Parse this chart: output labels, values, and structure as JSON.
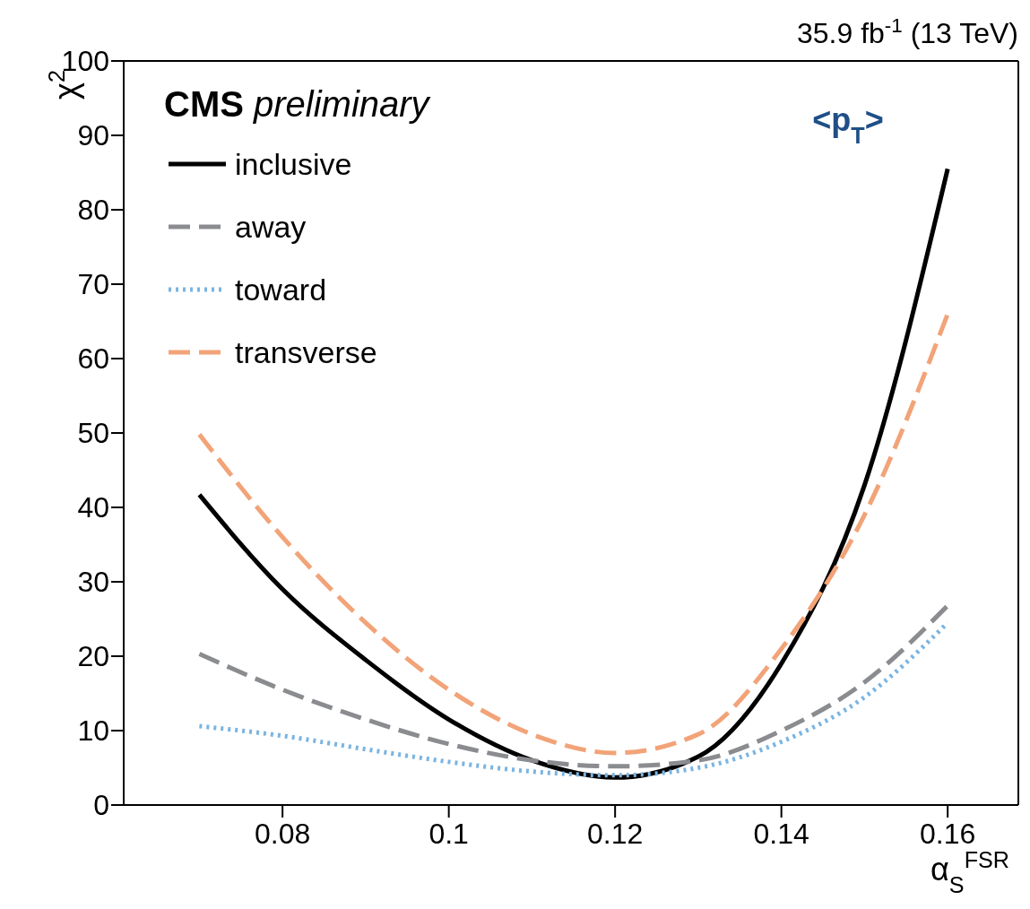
{
  "chart_data": {
    "type": "line",
    "xlabel": "α$_{S}$$^{FSR}$",
    "ylabel": "χ$^{2}$",
    "annotations": [
      "35.9 fb$^{-1}$ (13 TeV)",
      "CMS preliminary",
      "<p$_{T}$>"
    ],
    "x": [
      0.07,
      0.08,
      0.09,
      0.1,
      0.11,
      0.12,
      0.13,
      0.14,
      0.15,
      0.16
    ],
    "series": [
      {
        "name": "inclusive",
        "color": "#000000",
        "line_style": "solid",
        "values": [
          41.7,
          29,
          19.5,
          11.5,
          6,
          3.7,
          6.5,
          19,
          43,
          85.5
        ]
      },
      {
        "name": "away",
        "color": "#8a8c90",
        "line_style": "dashed",
        "values": [
          20.3,
          15.5,
          11.5,
          8.2,
          6,
          5.2,
          6,
          10,
          16.5,
          26.8
        ]
      },
      {
        "name": "toward",
        "color": "#7ab4e2",
        "line_style": "dotted",
        "values": [
          10.6,
          9.3,
          7.5,
          5.8,
          4.5,
          4,
          5,
          8.5,
          14.5,
          24.5
        ]
      },
      {
        "name": "transverse",
        "color": "#f2a378",
        "line_style": "dashed",
        "values": [
          49.8,
          36,
          24.5,
          15.5,
          9.5,
          7,
          9.5,
          21,
          39,
          66
        ]
      }
    ],
    "xlim": [
      0.0609,
      0.1685
    ],
    "xticks": [
      0.08,
      0.1,
      0.12,
      0.14,
      0.16
    ],
    "ylim": [
      0,
      100
    ],
    "yticks": [
      0,
      10,
      20,
      30,
      40,
      50,
      60,
      70,
      80,
      90,
      100
    ],
    "grid": false,
    "legend": "top left",
    "marker": "none"
  }
}
